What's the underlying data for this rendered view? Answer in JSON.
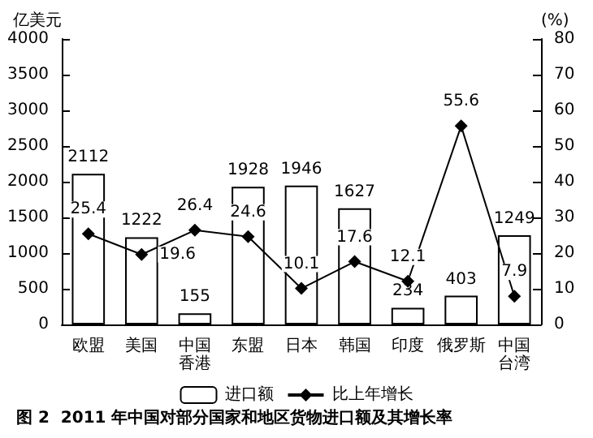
{
  "chart_data": {
    "type": "bar",
    "title": "图 2  2011 年中国对部分国家和地区货物进口额及其增长率",
    "ylabel": "亿美元",
    "y2label": "(%)",
    "categories": [
      "欧盟",
      "美国",
      "中国香港",
      "东盟",
      "日本",
      "韩国",
      "印度",
      "俄罗斯",
      "中国台湾"
    ],
    "series": [
      {
        "name": "进口额",
        "type": "bar",
        "color": "#ffffff",
        "values": [
          2112,
          1222,
          155,
          1928,
          1946,
          1627,
          234,
          403,
          1249
        ]
      },
      {
        "name": "比上年增长",
        "type": "line",
        "axis": "y2",
        "color": "#000000",
        "marker": "diamond",
        "values": [
          25.4,
          19.6,
          26.4,
          24.6,
          10.1,
          17.6,
          12.1,
          55.6,
          7.9
        ]
      }
    ],
    "ylim": [
      0,
      4000
    ],
    "yticks": [
      0,
      500,
      1000,
      1500,
      2000,
      2500,
      3000,
      3500,
      4000
    ],
    "y2lim": [
      0,
      80
    ],
    "y2ticks": [
      0,
      10,
      20,
      30,
      40,
      50,
      60,
      70,
      80
    ],
    "data_labels": true,
    "legend": "bottom",
    "grid": false
  }
}
